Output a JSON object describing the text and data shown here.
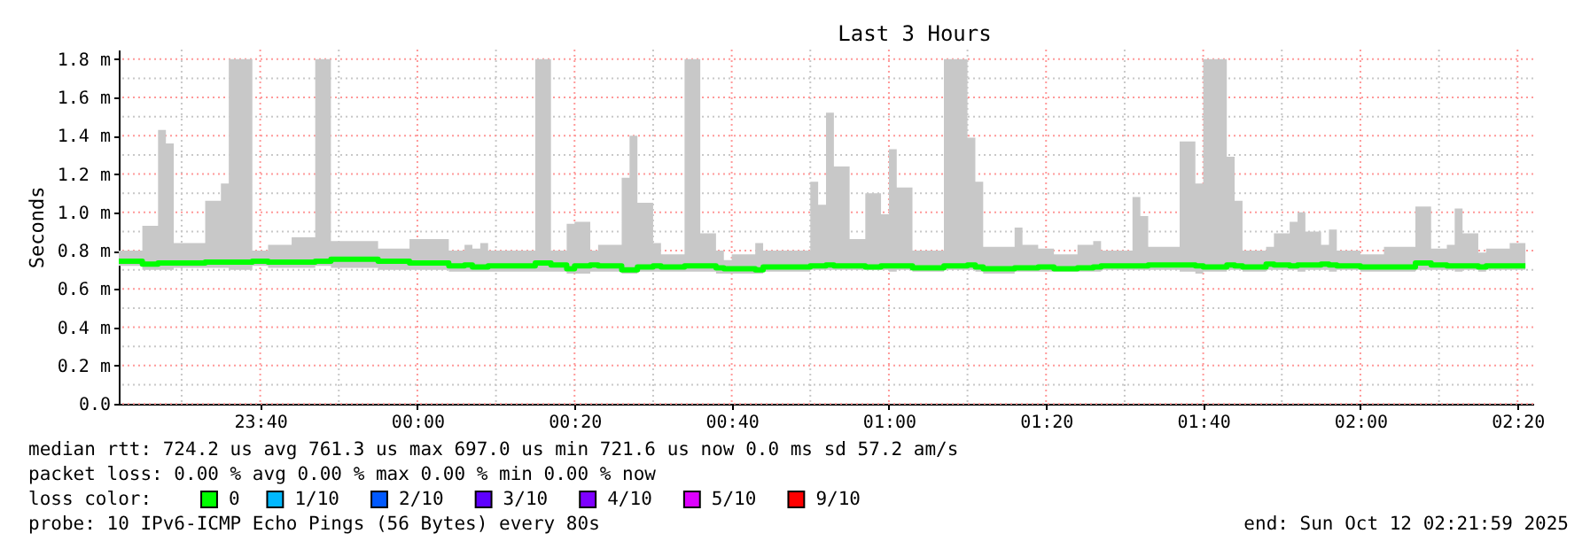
{
  "chart_data": {
    "type": "step",
    "title": "Last 3 Hours",
    "ylabel": "Seconds",
    "x": [
      "2025-10-11T23:22",
      "2025-10-11T23:25",
      "2025-10-11T23:27",
      "2025-10-11T23:28",
      "2025-10-11T23:29",
      "2025-10-11T23:33",
      "2025-10-11T23:35",
      "2025-10-11T23:36",
      "2025-10-11T23:39",
      "2025-10-11T23:41",
      "2025-10-11T23:44",
      "2025-10-11T23:47",
      "2025-10-11T23:49",
      "2025-10-11T23:55",
      "2025-10-11T23:59",
      "2025-10-12T00:04",
      "2025-10-12T00:06",
      "2025-10-12T00:07",
      "2025-10-12T00:08",
      "2025-10-12T00:09",
      "2025-10-12T00:15",
      "2025-10-12T00:17",
      "2025-10-12T00:19",
      "2025-10-12T00:20",
      "2025-10-12T00:22",
      "2025-10-12T00:23",
      "2025-10-12T00:26",
      "2025-10-12T00:27",
      "2025-10-12T00:28",
      "2025-10-12T00:30",
      "2025-10-12T00:31",
      "2025-10-12T00:34",
      "2025-10-12T00:36",
      "2025-10-12T00:38",
      "2025-10-12T00:39",
      "2025-10-12T00:40",
      "2025-10-12T00:43",
      "2025-10-12T00:44",
      "2025-10-12T00:50",
      "2025-10-12T00:51",
      "2025-10-12T00:52",
      "2025-10-12T00:53",
      "2025-10-12T00:55",
      "2025-10-12T00:57",
      "2025-10-12T00:59",
      "2025-10-12T01:00",
      "2025-10-12T01:01",
      "2025-10-12T01:03",
      "2025-10-12T01:07",
      "2025-10-12T01:10",
      "2025-10-12T01:11",
      "2025-10-12T01:12",
      "2025-10-12T01:16",
      "2025-10-12T01:17",
      "2025-10-12T01:19",
      "2025-10-12T01:21",
      "2025-10-12T01:24",
      "2025-10-12T01:26",
      "2025-10-12T01:27",
      "2025-10-12T01:31",
      "2025-10-12T01:32",
      "2025-10-12T01:33",
      "2025-10-12T01:37",
      "2025-10-12T01:39",
      "2025-10-12T01:40",
      "2025-10-12T01:43",
      "2025-10-12T01:44",
      "2025-10-12T01:45",
      "2025-10-12T01:48",
      "2025-10-12T01:49",
      "2025-10-12T01:51",
      "2025-10-12T01:52",
      "2025-10-12T01:53",
      "2025-10-12T01:55",
      "2025-10-12T01:56",
      "2025-10-12T01:57",
      "2025-10-12T02:00",
      "2025-10-12T02:03",
      "2025-10-12T02:07",
      "2025-10-12T02:09",
      "2025-10-12T02:11",
      "2025-10-12T02:12",
      "2025-10-12T02:13",
      "2025-10-12T02:15",
      "2025-10-12T02:16",
      "2025-10-12T02:19",
      "2025-10-12T02:21"
    ],
    "series": [
      {
        "name": "0",
        "color": "#00ff00",
        "values": [
          0.745,
          0.73,
          0.735,
          0.735,
          0.735,
          0.74,
          0.74,
          0.74,
          0.745,
          0.74,
          0.74,
          0.745,
          0.755,
          0.745,
          0.735,
          0.72,
          0.725,
          0.715,
          0.715,
          0.72,
          0.735,
          0.725,
          0.705,
          0.72,
          0.725,
          0.72,
          0.7,
          0.7,
          0.715,
          0.72,
          0.715,
          0.72,
          0.72,
          0.71,
          0.705,
          0.705,
          0.7,
          0.715,
          0.72,
          0.72,
          0.725,
          0.72,
          0.72,
          0.715,
          0.72,
          0.72,
          0.72,
          0.71,
          0.72,
          0.725,
          0.715,
          0.705,
          0.71,
          0.71,
          0.715,
          0.705,
          0.71,
          0.715,
          0.72,
          0.72,
          0.72,
          0.725,
          0.725,
          0.72,
          0.715,
          0.725,
          0.72,
          0.715,
          0.73,
          0.725,
          0.72,
          0.725,
          0.725,
          0.73,
          0.725,
          0.72,
          0.715,
          0.715,
          0.735,
          0.725,
          0.72,
          0.72,
          0.72,
          0.715,
          0.72,
          0.72,
          0.72
        ],
        "lower": [
          0.72,
          0.7,
          0.7,
          0.7,
          0.71,
          0.71,
          0.71,
          0.7,
          0.72,
          0.71,
          0.71,
          0.72,
          0.71,
          0.7,
          0.7,
          0.69,
          0.69,
          0.69,
          0.69,
          0.69,
          0.69,
          0.69,
          0.68,
          0.68,
          0.69,
          0.69,
          0.68,
          0.68,
          0.69,
          0.69,
          0.69,
          0.69,
          0.69,
          0.68,
          0.68,
          0.68,
          0.68,
          0.69,
          0.7,
          0.7,
          0.7,
          0.7,
          0.7,
          0.7,
          0.7,
          0.69,
          0.7,
          0.69,
          0.7,
          0.7,
          0.69,
          0.68,
          0.69,
          0.69,
          0.69,
          0.69,
          0.69,
          0.69,
          0.7,
          0.7,
          0.7,
          0.7,
          0.69,
          0.68,
          0.69,
          0.7,
          0.7,
          0.69,
          0.7,
          0.7,
          0.7,
          0.69,
          0.7,
          0.7,
          0.69,
          0.7,
          0.69,
          0.69,
          0.7,
          0.7,
          0.7,
          0.69,
          0.7,
          0.69,
          0.7,
          0.7,
          0.7
        ],
        "upper": [
          0.8,
          0.93,
          1.43,
          1.36,
          0.84,
          1.06,
          1.15,
          1.8,
          0.8,
          0.83,
          0.87,
          1.8,
          0.85,
          0.81,
          0.86,
          0.8,
          0.83,
          0.81,
          0.84,
          0.8,
          1.8,
          0.8,
          0.94,
          0.95,
          0.8,
          0.83,
          1.18,
          1.4,
          1.05,
          0.84,
          0.78,
          1.8,
          0.89,
          0.8,
          0.75,
          0.78,
          0.84,
          0.8,
          1.16,
          1.04,
          1.52,
          1.24,
          0.86,
          1.1,
          0.99,
          1.33,
          1.13,
          0.8,
          1.8,
          1.39,
          1.16,
          0.82,
          0.92,
          0.83,
          0.81,
          0.78,
          0.83,
          0.85,
          0.8,
          1.08,
          0.98,
          0.82,
          1.37,
          1.15,
          1.8,
          1.29,
          1.06,
          0.8,
          0.82,
          0.89,
          0.95,
          1.0,
          0.9,
          0.83,
          0.91,
          0.8,
          0.78,
          0.82,
          1.03,
          0.81,
          0.83,
          1.02,
          0.89,
          0.79,
          0.81,
          0.84,
          0.84
        ]
      },
      {
        "name": "1/10",
        "color": "#00b8ff",
        "values": [
          null,
          null,
          null,
          null,
          null,
          null,
          null,
          null,
          null,
          null,
          null,
          null,
          null,
          null,
          null,
          null,
          null,
          null,
          null,
          null,
          null,
          null,
          null,
          null,
          null,
          null,
          null,
          null,
          null,
          null,
          null,
          null,
          null,
          null,
          null,
          null,
          null,
          null,
          null,
          null,
          null,
          null,
          null,
          null,
          null,
          null,
          null,
          null,
          null,
          null,
          null,
          null,
          null,
          null,
          null,
          null,
          null,
          null,
          null,
          null,
          null,
          null,
          null,
          null,
          null,
          null,
          null,
          null,
          null,
          null,
          null,
          null,
          null,
          null,
          null,
          null,
          null,
          null,
          null,
          null,
          null,
          null,
          null,
          null,
          null,
          null,
          null
        ]
      },
      {
        "name": "2/10",
        "color": "#0059ff",
        "values": [
          null,
          null,
          null,
          null,
          null,
          null,
          null,
          null,
          null,
          null,
          null,
          null,
          null,
          null,
          null,
          null,
          null,
          null,
          null,
          null,
          null,
          null,
          null,
          null,
          null,
          null,
          null,
          null,
          null,
          null,
          null,
          null,
          null,
          null,
          null,
          null,
          null,
          null,
          null,
          null,
          null,
          null,
          null,
          null,
          null,
          null,
          null,
          null,
          null,
          null,
          null,
          null,
          null,
          null,
          null,
          null,
          null,
          null,
          null,
          null,
          null,
          null,
          null,
          null,
          null,
          null,
          null,
          null,
          null,
          null,
          null,
          null,
          null,
          null,
          null,
          null,
          null,
          null,
          null,
          null,
          null,
          null,
          null,
          null,
          null,
          null,
          null
        ]
      },
      {
        "name": "3/10",
        "color": "#5e00ff",
        "values": [
          null,
          null,
          null,
          null,
          null,
          null,
          null,
          null,
          null,
          null,
          null,
          null,
          null,
          null,
          null,
          null,
          null,
          null,
          null,
          null,
          null,
          null,
          null,
          null,
          null,
          null,
          null,
          null,
          null,
          null,
          null,
          null,
          null,
          null,
          null,
          null,
          null,
          null,
          null,
          null,
          null,
          null,
          null,
          null,
          null,
          null,
          null,
          null,
          null,
          null,
          null,
          null,
          null,
          null,
          null,
          null,
          null,
          null,
          null,
          null,
          null,
          null,
          null,
          null,
          null,
          null,
          null,
          null,
          null,
          null,
          null,
          null,
          null,
          null,
          null,
          null,
          null,
          null,
          null,
          null,
          null,
          null,
          null,
          null,
          null,
          null,
          null
        ]
      },
      {
        "name": "4/10",
        "color": "#7e00ff",
        "values": [
          null,
          null,
          null,
          null,
          null,
          null,
          null,
          null,
          null,
          null,
          null,
          null,
          null,
          null,
          null,
          null,
          null,
          null,
          null,
          null,
          null,
          null,
          null,
          null,
          null,
          null,
          null,
          null,
          null,
          null,
          null,
          null,
          null,
          null,
          null,
          null,
          null,
          null,
          null,
          null,
          null,
          null,
          null,
          null,
          null,
          null,
          null,
          null,
          null,
          null,
          null,
          null,
          null,
          null,
          null,
          null,
          null,
          null,
          null,
          null,
          null,
          null,
          null,
          null,
          null,
          null,
          null,
          null,
          null,
          null,
          null,
          null,
          null,
          null,
          null,
          null,
          null,
          null,
          null,
          null,
          null,
          null,
          null,
          null,
          null,
          null,
          null
        ]
      },
      {
        "name": "5/10",
        "color": "#dd00ff",
        "values": [
          null,
          null,
          null,
          null,
          null,
          null,
          null,
          null,
          null,
          null,
          null,
          null,
          null,
          null,
          null,
          null,
          null,
          null,
          null,
          null,
          null,
          null,
          null,
          null,
          null,
          null,
          null,
          null,
          null,
          null,
          null,
          null,
          null,
          null,
          null,
          null,
          null,
          null,
          null,
          null,
          null,
          null,
          null,
          null,
          null,
          null,
          null,
          null,
          null,
          null,
          null,
          null,
          null,
          null,
          null,
          null,
          null,
          null,
          null,
          null,
          null,
          null,
          null,
          null,
          null,
          null,
          null,
          null,
          null,
          null,
          null,
          null,
          null,
          null,
          null,
          null,
          null,
          null,
          null,
          null,
          null,
          null,
          null,
          null,
          null,
          null,
          null
        ]
      },
      {
        "name": "9/10",
        "color": "#ff0000",
        "values": [
          null,
          null,
          null,
          null,
          null,
          null,
          null,
          null,
          null,
          null,
          null,
          null,
          null,
          null,
          null,
          null,
          null,
          null,
          null,
          null,
          null,
          null,
          null,
          null,
          null,
          null,
          null,
          null,
          null,
          null,
          null,
          null,
          null,
          null,
          null,
          null,
          null,
          null,
          null,
          null,
          null,
          null,
          null,
          null,
          null,
          null,
          null,
          null,
          null,
          null,
          null,
          null,
          null,
          null,
          null,
          null,
          null,
          null,
          null,
          null,
          null,
          null,
          null,
          null,
          null,
          null,
          null,
          null,
          null,
          null,
          null,
          null,
          null,
          null,
          null,
          null,
          null,
          null,
          null,
          null,
          null,
          null,
          null,
          null,
          null,
          null,
          null
        ]
      }
    ],
    "xlim": [
      "2025-10-11T23:22",
      "2025-10-12T02:22"
    ],
    "xticks": [
      {
        "value": "2025-10-11T23:30",
        "label": null
      },
      {
        "value": "2025-10-11T23:40",
        "label": "23:40"
      },
      {
        "value": "2025-10-11T23:50",
        "label": null
      },
      {
        "value": "2025-10-12T00:00",
        "label": "00:00"
      },
      {
        "value": "2025-10-12T00:10",
        "label": null
      },
      {
        "value": "2025-10-12T00:20",
        "label": "00:20"
      },
      {
        "value": "2025-10-12T00:30",
        "label": null
      },
      {
        "value": "2025-10-12T00:40",
        "label": "00:40"
      },
      {
        "value": "2025-10-12T00:50",
        "label": null
      },
      {
        "value": "2025-10-12T01:00",
        "label": "01:00"
      },
      {
        "value": "2025-10-12T01:10",
        "label": null
      },
      {
        "value": "2025-10-12T01:20",
        "label": "01:20"
      },
      {
        "value": "2025-10-12T01:30",
        "label": null
      },
      {
        "value": "2025-10-12T01:40",
        "label": "01:40"
      },
      {
        "value": "2025-10-12T01:50",
        "label": null
      },
      {
        "value": "2025-10-12T02:00",
        "label": "02:00"
      },
      {
        "value": "2025-10-12T02:10",
        "label": null
      },
      {
        "value": "2025-10-12T02:20",
        "label": "02:20"
      }
    ],
    "ylim": [
      0,
      1.85
    ],
    "yticks": [
      {
        "value": 0,
        "label": "0.0"
      },
      {
        "value": 0.1,
        "label": null
      },
      {
        "value": 0.2,
        "label": "0.2 m"
      },
      {
        "value": 0.3,
        "label": null
      },
      {
        "value": 0.4,
        "label": "0.4 m"
      },
      {
        "value": 0.5,
        "label": null
      },
      {
        "value": 0.6,
        "label": "0.6 m"
      },
      {
        "value": 0.7,
        "label": null
      },
      {
        "value": 0.8,
        "label": "0.8 m"
      },
      {
        "value": 0.9,
        "label": null
      },
      {
        "value": 1.0,
        "label": "1.0 m"
      },
      {
        "value": 1.1,
        "label": null
      },
      {
        "value": 1.2,
        "label": "1.2 m"
      },
      {
        "value": 1.3,
        "label": null
      },
      {
        "value": 1.4,
        "label": "1.4 m"
      },
      {
        "value": 1.5,
        "label": null
      },
      {
        "value": 1.6,
        "label": "1.6 m"
      },
      {
        "value": 1.7,
        "label": null
      },
      {
        "value": 1.8,
        "label": "1.8 m"
      }
    ],
    "grid": true,
    "legend": "bottom",
    "legend_title": "loss color:",
    "line_style": "solid",
    "annotations": [
      "median rtt:  724.2 us avg  761.3 us max  697.0 us min  721.6 us now  0.0 ms sd  57.2   am/s",
      "packet loss: 0.00 % avg  0.00 % max  0.00 % min  0.00 % now",
      "probe:       10 IPv6-ICMP Echo Pings (56 Bytes) every 80s",
      "end: Sun Oct 12 02:21:59 2025"
    ]
  }
}
